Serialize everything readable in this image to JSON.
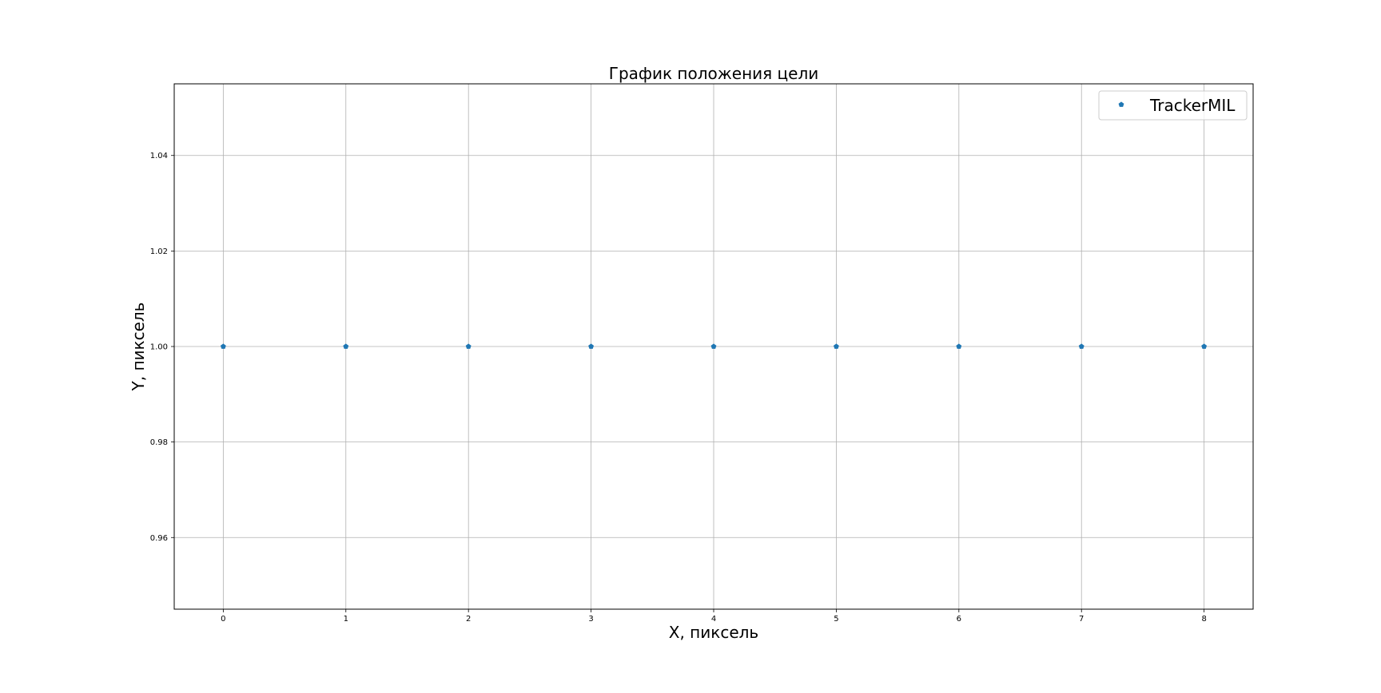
{
  "chart_data": {
    "type": "scatter",
    "title": "График положения цели",
    "xlabel": "X, пиксель",
    "ylabel": "Y, пиксель",
    "xlim": [
      -0.4,
      8.4
    ],
    "ylim": [
      0.945,
      1.055
    ],
    "xticks": [
      0,
      1,
      2,
      3,
      4,
      5,
      6,
      7,
      8
    ],
    "xtick_labels": [
      "0",
      "1",
      "2",
      "3",
      "4",
      "5",
      "6",
      "7",
      "8"
    ],
    "yticks": [
      0.96,
      0.98,
      1.0,
      1.02,
      1.04
    ],
    "ytick_labels": [
      "0.96",
      "0.98",
      "1.00",
      "1.02",
      "1.04"
    ],
    "grid": true,
    "legend_position": "top-right",
    "marker": "pentagon",
    "series": [
      {
        "name": "TrackerMIL",
        "color": "#1f77b4",
        "x": [
          0,
          1,
          2,
          3,
          4,
          5,
          6,
          7,
          8
        ],
        "y": [
          1.0,
          1.0,
          1.0,
          1.0,
          1.0,
          1.0,
          1.0,
          1.0,
          1.0
        ]
      }
    ]
  }
}
